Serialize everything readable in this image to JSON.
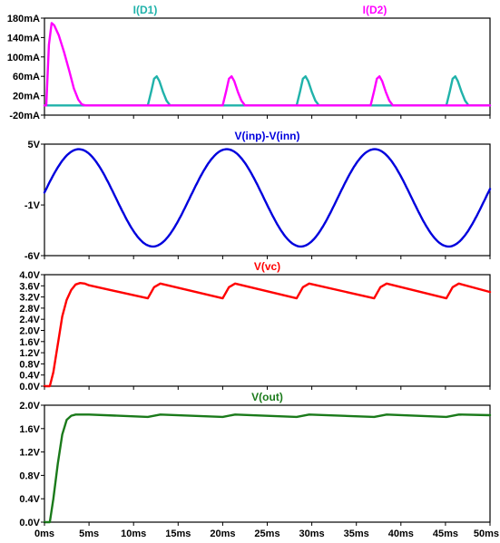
{
  "chart_data": [
    {
      "type": "line",
      "series": [
        {
          "name": "I(D1)",
          "color": "#20b2aa",
          "unit": "mA",
          "x": [
            0,
            11.6,
            12.0,
            12.3,
            12.6,
            12.9,
            13.3,
            13.7,
            14.1,
            20,
            28.3,
            28.7,
            29.0,
            29.3,
            29.6,
            30.0,
            30.4,
            30.8,
            37,
            45.1,
            45.5,
            45.8,
            46.1,
            46.4,
            46.8,
            47.2,
            47.6,
            50
          ],
          "y": [
            0,
            0,
            30,
            55,
            60,
            50,
            28,
            10,
            0,
            0,
            0,
            30,
            55,
            60,
            50,
            28,
            10,
            0,
            0,
            0,
            30,
            55,
            60,
            50,
            28,
            10,
            0,
            0
          ]
        },
        {
          "name": "I(D2)",
          "color": "#ff00ff",
          "unit": "mA",
          "x": [
            0,
            0.2,
            0.5,
            0.8,
            1.1,
            1.6,
            2.2,
            2.8,
            3.3,
            3.8,
            4.2,
            4.6,
            11,
            20.0,
            20.4,
            20.7,
            21.0,
            21.3,
            21.7,
            22.1,
            22.5,
            28,
            36.6,
            37.0,
            37.3,
            37.6,
            37.9,
            38.3,
            38.7,
            39.1,
            50
          ],
          "y": [
            0,
            0,
            125,
            170,
            165,
            145,
            110,
            70,
            35,
            12,
            2,
            0,
            0,
            0,
            30,
            55,
            60,
            50,
            28,
            10,
            0,
            0,
            0,
            30,
            55,
            60,
            50,
            28,
            10,
            0,
            0
          ]
        }
      ],
      "title": "",
      "yticks": [
        "180mA",
        "140mA",
        "100mA",
        "60mA",
        "20mA",
        "-20mA"
      ],
      "ylim": [
        -20,
        180
      ]
    },
    {
      "type": "line",
      "series": [
        {
          "name": "V(inp)-V(inn)",
          "color": "#0000dd",
          "function": "4.8*sin(2*pi*t/16.6 + 0.11) - 0.3",
          "unit": "V"
        }
      ],
      "yticks": [
        "5V",
        "-1V",
        "-6V"
      ],
      "ylim": [
        -6,
        5
      ]
    },
    {
      "type": "line",
      "series": [
        {
          "name": "V(vc)",
          "color": "#ff0000",
          "unit": "V",
          "x": [
            0,
            0.6,
            1.0,
            1.5,
            2.0,
            2.5,
            3.0,
            3.5,
            4.0,
            4.5,
            5.0,
            11.6,
            12.3,
            13.0,
            20.0,
            20.7,
            21.4,
            28.3,
            29.0,
            29.7,
            37.0,
            37.7,
            38.4,
            45.1,
            45.8,
            46.5,
            50
          ],
          "y": [
            0,
            0,
            0.5,
            1.5,
            2.5,
            3.1,
            3.45,
            3.65,
            3.7,
            3.68,
            3.62,
            3.15,
            3.55,
            3.68,
            3.15,
            3.55,
            3.68,
            3.15,
            3.55,
            3.68,
            3.15,
            3.55,
            3.68,
            3.15,
            3.55,
            3.68,
            3.38
          ]
        }
      ],
      "yticks": [
        "4.0V",
        "3.6V",
        "3.2V",
        "2.8V",
        "2.4V",
        "2.0V",
        "1.6V",
        "1.2V",
        "0.8V",
        "0.4V",
        "0.0V"
      ],
      "ylim": [
        0,
        4.0
      ]
    },
    {
      "type": "line",
      "series": [
        {
          "name": "V(out)",
          "color": "#1a7a1a",
          "unit": "V",
          "x": [
            0,
            0.6,
            1.0,
            1.5,
            2.0,
            2.5,
            3.0,
            3.5,
            4.0,
            5.0,
            11.6,
            13.0,
            20.0,
            21.4,
            28.3,
            29.7,
            37.0,
            38.4,
            45.1,
            46.5,
            50
          ],
          "y": [
            0,
            0,
            0.4,
            1.0,
            1.5,
            1.75,
            1.82,
            1.84,
            1.84,
            1.84,
            1.8,
            1.84,
            1.8,
            1.84,
            1.8,
            1.84,
            1.8,
            1.84,
            1.8,
            1.84,
            1.83
          ]
        }
      ],
      "yticks": [
        "2.0V",
        "1.6V",
        "1.2V",
        "0.8V",
        "0.4V",
        "0.0V"
      ],
      "ylim": [
        0,
        2.0
      ]
    }
  ],
  "xaxis": {
    "ticks": [
      "0ms",
      "5ms",
      "10ms",
      "15ms",
      "20ms",
      "25ms",
      "30ms",
      "35ms",
      "40ms",
      "45ms",
      "50ms"
    ],
    "xlim": [
      0,
      50
    ]
  }
}
